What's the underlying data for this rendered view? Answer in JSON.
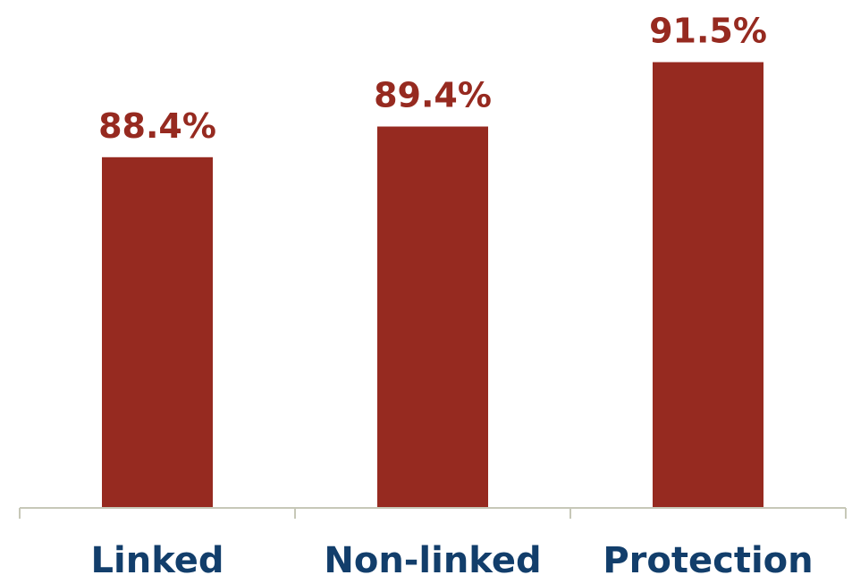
{
  "chart_data": {
    "type": "bar",
    "categories": [
      "Linked",
      "Non-linked",
      "Protection"
    ],
    "values": [
      88.4,
      89.4,
      91.5
    ],
    "data_labels": [
      "88.4%",
      "89.4%",
      "91.5%"
    ],
    "title": "",
    "xlabel": "",
    "ylabel": "",
    "ylim": [
      77,
      93
    ],
    "grid": false,
    "legend": "none"
  },
  "colors": {
    "bar": "#962a20",
    "data_label": "#962a20",
    "category_label": "#123e6b",
    "axis": "#c7c8b8"
  }
}
